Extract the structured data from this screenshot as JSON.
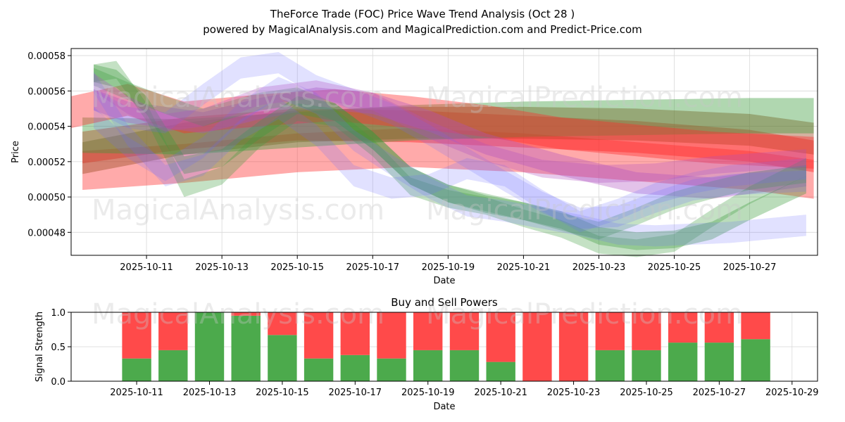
{
  "figure": {
    "title": "TheForce Trade (FOC) Price Wave Trend Analysis (Oct 28 )",
    "subtitle": "powered by MagicalAnalysis.com and MagicalPrediction.com and Predict-Price.com",
    "watermarks": [
      "MagicalAnalysis.com",
      "MagicalPrediction.com",
      "MagicalAnalysis.com",
      "MagicalPrediction.com",
      "MagicalAnalysis.com",
      "MagicalPrediction.com"
    ]
  },
  "chart_data": [
    {
      "type": "area",
      "name": "price-wave-chart",
      "title": "",
      "xlabel": "Date",
      "ylabel": "Price",
      "x_tick_labels": [
        "2025-10-11",
        "2025-10-13",
        "2025-10-15",
        "2025-10-17",
        "2025-10-19",
        "2025-10-21",
        "2025-10-23",
        "2025-10-25",
        "2025-10-27"
      ],
      "x_tick_days": [
        11,
        13,
        15,
        17,
        19,
        21,
        23,
        25,
        27
      ],
      "xlim": [
        9.0,
        28.8
      ],
      "y_tick_labels": [
        "0.00048",
        "0.00050",
        "0.00052",
        "0.00054",
        "0.00056",
        "0.00058"
      ],
      "y_tick_values": [
        0.00048,
        0.0005,
        0.00052,
        0.00054,
        0.00056,
        0.00058
      ],
      "ylim": [
        0.000467,
        0.000584
      ],
      "grid": true,
      "colors": {
        "green": "#3a9a3a",
        "blue": "#6a6aff",
        "red": "#ff2a2a",
        "brown": "#a0522d",
        "purple": "#b050c0"
      },
      "series": [
        {
          "name": "red-lower",
          "color": "red",
          "opacity": 0.4,
          "width": 2.2e-05,
          "x": [
            9.3,
            12,
            15,
            18,
            21,
            24,
            27,
            28.7
          ],
          "values": [
            0.000515,
            0.000519,
            0.000525,
            0.000528,
            0.000525,
            0.00052,
            0.000515,
            0.00051
          ]
        },
        {
          "name": "red-mid",
          "color": "red",
          "opacity": 0.45,
          "width": 1.8e-05,
          "x": [
            9.3,
            12,
            15,
            18,
            21,
            24,
            27,
            28.7
          ],
          "values": [
            0.000528,
            0.000536,
            0.000541,
            0.00054,
            0.000537,
            0.000534,
            0.000529,
            0.000523
          ]
        },
        {
          "name": "brown-band",
          "color": "brown",
          "opacity": 0.45,
          "width": 1.8e-05,
          "x": [
            9.3,
            12,
            15,
            18,
            21,
            24,
            27,
            28.7
          ],
          "values": [
            0.000522,
            0.000533,
            0.00054,
            0.000542,
            0.000542,
            0.000541,
            0.000538,
            0.000533
          ]
        },
        {
          "name": "green-top",
          "color": "green",
          "opacity": 0.4,
          "width": 2e-05,
          "x": [
            9.3,
            12,
            15,
            18,
            21,
            24,
            27,
            28.7
          ],
          "values": [
            0.000535,
            0.000534,
            0.000538,
            0.000542,
            0.000544,
            0.000545,
            0.000546,
            0.000546
          ]
        },
        {
          "name": "red-high",
          "color": "red",
          "opacity": 0.4,
          "width": 1.8e-05,
          "x": [
            9.0,
            10.5,
            12,
            14,
            16,
            18,
            20,
            22,
            24,
            26,
            28.7
          ],
          "values": [
            0.000548,
            0.000555,
            0.000545,
            0.000549,
            0.000552,
            0.000548,
            0.000543,
            0.000536,
            0.000532,
            0.000528,
            0.000525
          ]
        },
        {
          "name": "purple-top",
          "color": "purple",
          "opacity": 0.35,
          "width": 1.2e-05,
          "x": [
            9.6,
            10.5,
            11.5,
            12.5,
            14,
            15.5,
            17,
            18.5,
            20,
            22,
            24,
            26,
            28.5
          ],
          "values": [
            0.000555,
            0.000548,
            0.000545,
            0.000542,
            0.00055,
            0.000556,
            0.000553,
            0.000543,
            0.00053,
            0.000518,
            0.000508,
            0.000505,
            0.000512
          ]
        },
        {
          "name": "green-wave-1",
          "color": "green",
          "opacity": 0.35,
          "width": 1e-05,
          "x": [
            9.6,
            10.2,
            11,
            12,
            13,
            14,
            15,
            16,
            17,
            18,
            19,
            20,
            21,
            22,
            23,
            24,
            25,
            26,
            27,
            28.5
          ],
          "values": [
            0.00057,
            0.000567,
            0.000552,
            0.000518,
            0.000522,
            0.000538,
            0.000552,
            0.000548,
            0.000532,
            0.000512,
            0.000502,
            0.000496,
            0.000492,
            0.000487,
            0.000478,
            0.000475,
            0.000476,
            0.000481,
            0.000492,
            0.000507
          ]
        },
        {
          "name": "green-wave-2",
          "color": "green",
          "opacity": 0.3,
          "width": 1e-05,
          "x": [
            9.6,
            10.2,
            11,
            12,
            13,
            14,
            15,
            16,
            17,
            18,
            19,
            20,
            21,
            22,
            23,
            24,
            25,
            26,
            27,
            28.5
          ],
          "values": [
            0.00057,
            0.000572,
            0.000548,
            0.000505,
            0.000512,
            0.000533,
            0.000548,
            0.000545,
            0.000528,
            0.000506,
            0.000499,
            0.000495,
            0.000488,
            0.000482,
            0.000473,
            0.000471,
            0.000474,
            0.000488,
            0.000501,
            0.000517
          ]
        },
        {
          "name": "green-wave-3",
          "color": "green",
          "opacity": 0.3,
          "width": 1e-05,
          "x": [
            9.6,
            10.5,
            11.5,
            12.5,
            14,
            15,
            16,
            17,
            18,
            19,
            20,
            21,
            22,
            23,
            24,
            25,
            26,
            27,
            28.5
          ],
          "values": [
            0.000568,
            0.00056,
            0.000552,
            0.000545,
            0.000554,
            0.000557,
            0.000548,
            0.000532,
            0.000512,
            0.000502,
            0.000497,
            0.000492,
            0.000486,
            0.000481,
            0.000489,
            0.000498,
            0.000504,
            0.000509,
            0.000513
          ]
        },
        {
          "name": "blue-wave-1",
          "color": "blue",
          "opacity": 0.2,
          "width": 1.2e-05,
          "x": [
            9.6,
            10.5,
            11.5,
            12.5,
            13.5,
            14.5,
            15.5,
            16.5,
            17.5,
            18.5,
            19.5,
            20.5,
            21.5,
            22.5,
            23.5,
            24.5,
            25.5,
            26.5,
            28.5
          ],
          "values": [
            0.000555,
            0.000545,
            0.000542,
            0.000558,
            0.000573,
            0.000576,
            0.000563,
            0.000555,
            0.000547,
            0.000535,
            0.000522,
            0.000509,
            0.000497,
            0.000488,
            0.000489,
            0.000497,
            0.000504,
            0.000507,
            0.000509
          ]
        },
        {
          "name": "blue-wave-2",
          "color": "blue",
          "opacity": 0.2,
          "width": 1.2e-05,
          "x": [
            9.6,
            10.5,
            11.5,
            12.5,
            13.5,
            14.5,
            15.5,
            16.5,
            17.5,
            18.5,
            19.5,
            20.5,
            21.5,
            22.5,
            23.5,
            24.5,
            25.5,
            26.5,
            28.5
          ],
          "values": [
            0.000545,
            0.000528,
            0.000515,
            0.000528,
            0.000548,
            0.000562,
            0.000553,
            0.000532,
            0.000518,
            0.000505,
            0.000495,
            0.000492,
            0.000488,
            0.000484,
            0.000479,
            0.000478,
            0.000479,
            0.00048,
            0.000484
          ]
        },
        {
          "name": "blue-wave-3",
          "color": "blue",
          "opacity": 0.2,
          "width": 1.2e-05,
          "x": [
            9.6,
            10.5,
            11.5,
            12.5,
            13.5,
            14.5,
            15.5,
            16.5,
            17.5,
            18.5,
            19.5,
            20.5,
            21.5,
            22.5,
            23.5,
            24.5,
            25.5,
            26.5,
            28.5
          ],
          "values": [
            0.000565,
            0.000535,
            0.000512,
            0.000518,
            0.000538,
            0.00055,
            0.000535,
            0.000512,
            0.000505,
            0.000507,
            0.000516,
            0.000512,
            0.000498,
            0.000486,
            0.000493,
            0.000502,
            0.000508,
            0.000512,
            0.000516
          ]
        },
        {
          "name": "purple-wave",
          "color": "purple",
          "opacity": 0.3,
          "width": 1e-05,
          "x": [
            9.6,
            10.5,
            11.5,
            12.5,
            14,
            15.5,
            17,
            18.5,
            20,
            21.5,
            23,
            24.5,
            26,
            28.5
          ],
          "values": [
            0.000565,
            0.000552,
            0.000542,
            0.000545,
            0.000557,
            0.000561,
            0.000554,
            0.000538,
            0.000525,
            0.000516,
            0.000513,
            0.000514,
            0.000518,
            0.000522
          ]
        }
      ]
    },
    {
      "type": "bar",
      "name": "buy-sell-powers-chart",
      "title": "Buy and Sell Powers",
      "xlabel": "Date",
      "ylabel": "Signal Strength",
      "x_tick_labels": [
        "2025-10-11",
        "2025-10-13",
        "2025-10-15",
        "2025-10-17",
        "2025-10-19",
        "2025-10-21",
        "2025-10-23",
        "2025-10-25",
        "2025-10-27",
        "2025-10-29"
      ],
      "x_tick_days": [
        11,
        13,
        15,
        17,
        19,
        21,
        23,
        25,
        27,
        29
      ],
      "xlim": [
        9.2,
        29.7
      ],
      "y_tick_labels": [
        "0.0",
        "0.5",
        "1.0"
      ],
      "y_tick_values": [
        0.0,
        0.5,
        1.0
      ],
      "ylim": [
        0,
        1
      ],
      "grid": true,
      "colors": {
        "buy": "#4caa4c",
        "sell": "#ff4a4a"
      },
      "categories": [
        "2025-10-11",
        "2025-10-12",
        "2025-10-13",
        "2025-10-14",
        "2025-10-15",
        "2025-10-16",
        "2025-10-17",
        "2025-10-18",
        "2025-10-19",
        "2025-10-20",
        "2025-10-21",
        "2025-10-22",
        "2025-10-23",
        "2025-10-24",
        "2025-10-25",
        "2025-10-26",
        "2025-10-27",
        "2025-10-28"
      ],
      "x_days": [
        11,
        12,
        13,
        14,
        15,
        16,
        17,
        18,
        19,
        20,
        21,
        22,
        23,
        24,
        25,
        26,
        27,
        28
      ],
      "series": [
        {
          "name": "Buy",
          "values": [
            0.33,
            0.45,
            1.0,
            0.95,
            0.67,
            0.33,
            0.38,
            0.33,
            0.45,
            0.45,
            0.28,
            0.0,
            0.0,
            0.45,
            0.45,
            0.56,
            0.56,
            0.61
          ]
        },
        {
          "name": "Sell",
          "values": [
            0.67,
            0.55,
            0.0,
            0.05,
            0.33,
            0.67,
            0.62,
            0.67,
            0.55,
            0.55,
            0.72,
            1.0,
            1.0,
            0.55,
            0.55,
            0.44,
            0.44,
            0.39
          ]
        }
      ]
    }
  ]
}
